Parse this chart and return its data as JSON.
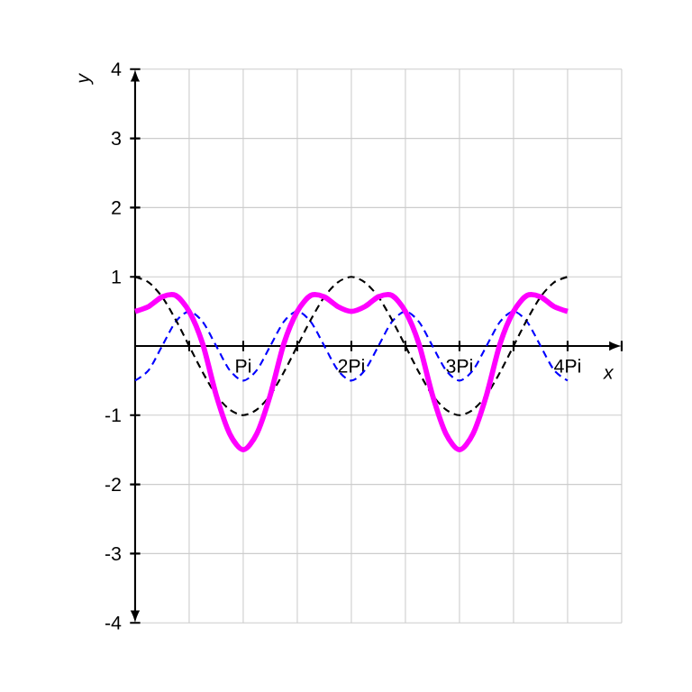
{
  "chart_data": {
    "type": "line",
    "xlabel": "x",
    "ylabel": "y",
    "x": [
      0,
      0.125,
      0.25,
      0.375,
      0.5,
      0.625,
      0.75,
      0.875,
      1,
      1.125,
      1.25,
      1.375,
      1.5,
      1.625,
      1.75,
      1.875,
      2,
      2.125,
      2.25,
      2.375,
      2.5,
      2.625,
      2.75,
      2.875,
      3,
      3.125,
      3.25,
      3.375,
      3.5,
      3.625,
      3.75,
      3.875,
      4
    ],
    "series": [
      {
        "color": "#0000ff",
        "line_style": "dashed",
        "values": [
          -0.5,
          -0.35,
          0,
          0.35,
          0.5,
          0.35,
          0,
          -0.35,
          -0.5,
          -0.35,
          0,
          0.35,
          0.5,
          0.35,
          0,
          -0.35,
          -0.5,
          -0.35,
          0,
          0.35,
          0.5,
          0.35,
          0,
          -0.35,
          -0.5,
          -0.35,
          0,
          0.35,
          0.5,
          0.35,
          0,
          -0.35,
          -0.5
        ]
      },
      {
        "color": "#000000",
        "line_style": "dashed",
        "values": [
          1,
          0.92,
          0.71,
          0.38,
          0,
          -0.38,
          -0.71,
          -0.92,
          -1,
          -0.92,
          -0.71,
          -0.38,
          0,
          0.38,
          0.71,
          0.92,
          1,
          0.92,
          0.71,
          0.38,
          0,
          -0.38,
          -0.71,
          -0.92,
          -1,
          -0.92,
          -0.71,
          -0.38,
          0,
          0.38,
          0.71,
          0.92,
          1
        ]
      },
      {
        "color": "#ff00ff",
        "line_style": "solid",
        "values": [
          0.5,
          0.57,
          0.71,
          0.73,
          0.5,
          0.03,
          -0.71,
          -1.27,
          -1.5,
          -1.27,
          -0.71,
          0.03,
          0.5,
          0.73,
          0.71,
          0.57,
          0.5,
          0.57,
          0.71,
          0.73,
          0.5,
          0.03,
          -0.71,
          -1.27,
          -1.5,
          -1.27,
          -0.71,
          0.03,
          0.5,
          0.73,
          0.71,
          0.57,
          0.5
        ]
      }
    ],
    "xlim": [
      0,
      4.5
    ],
    "ylim": [
      -4,
      4
    ],
    "xticks": [
      {
        "value": 0.5,
        "label": null
      },
      {
        "value": 1,
        "label": "Pi"
      },
      {
        "value": 1.5,
        "label": null
      },
      {
        "value": 2,
        "label": "2Pi"
      },
      {
        "value": 2.5,
        "label": null
      },
      {
        "value": 3,
        "label": "3Pi"
      },
      {
        "value": 3.5,
        "label": null
      },
      {
        "value": 4,
        "label": "4Pi"
      },
      {
        "value": 4.5,
        "label": null
      }
    ],
    "yticks": [
      -4,
      -3,
      -2,
      -1,
      1,
      2,
      3,
      4
    ],
    "grid": true
  }
}
